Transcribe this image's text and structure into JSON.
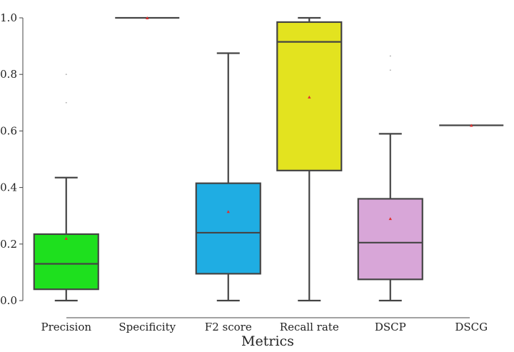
{
  "chart_data": {
    "type": "box",
    "title": "",
    "xlabel": "Metrics",
    "ylabel": "",
    "ylim": [
      0,
      1.0
    ],
    "yticks": [
      "0.0",
      "0.2",
      "0.4",
      "0.6",
      "0.8",
      "1.0"
    ],
    "grid": false,
    "series": [
      {
        "name": "Precision",
        "color": "#1ee01e",
        "min": 0.0,
        "q1": 0.04,
        "median": 0.13,
        "q3": 0.235,
        "max": 0.435,
        "mean": 0.22,
        "outliers": [
          0.7,
          0.8
        ]
      },
      {
        "name": "Specificity",
        "color": "#bbbbbb",
        "min": 1.0,
        "q1": 1.0,
        "median": 1.0,
        "q3": 1.0,
        "max": 1.0,
        "mean": 1.0,
        "outliers": []
      },
      {
        "name": "F2 score",
        "color": "#1fade3",
        "min": 0.0,
        "q1": 0.095,
        "median": 0.24,
        "q3": 0.415,
        "max": 0.875,
        "mean": 0.315,
        "outliers": []
      },
      {
        "name": "Recall rate",
        "color": "#e3e31f",
        "min": 0.0,
        "q1": 0.46,
        "median": 0.915,
        "q3": 0.985,
        "max": 1.0,
        "mean": 0.72,
        "outliers": []
      },
      {
        "name": "DSCP",
        "color": "#d8a6d8",
        "min": 0.0,
        "q1": 0.075,
        "median": 0.205,
        "q3": 0.36,
        "max": 0.59,
        "mean": 0.29,
        "outliers": [
          0.815,
          0.865
        ]
      },
      {
        "name": "DSCG",
        "color": "#bbbbbb",
        "min": 0.62,
        "q1": 0.62,
        "median": 0.62,
        "q3": 0.62,
        "max": 0.62,
        "mean": 0.62,
        "outliers": []
      }
    ],
    "mean_marker_color": "#e03030"
  }
}
